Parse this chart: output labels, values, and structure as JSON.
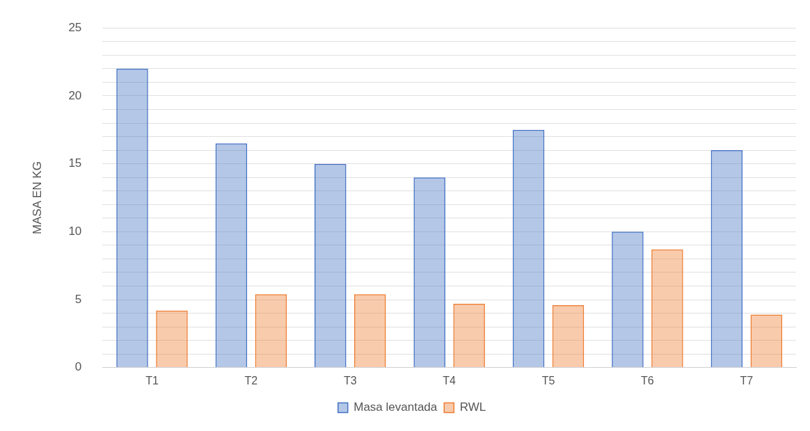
{
  "chart_data": {
    "type": "bar",
    "ylabel": "MASA EN KG",
    "categories": [
      "T1",
      "T2",
      "T3",
      "T4",
      "T5",
      "T6",
      "T7"
    ],
    "series": [
      {
        "name": "Masa levantada",
        "color": "#4472c4",
        "values": [
          22,
          16.5,
          15,
          14,
          17.5,
          10,
          16
        ]
      },
      {
        "name": "RWL",
        "color": "#ed7d31",
        "values": [
          4.2,
          5.4,
          5.4,
          4.7,
          4.6,
          8.7,
          3.9
        ]
      }
    ],
    "ylim": [
      0,
      25
    ],
    "yticks": [
      0,
      {
        "value": 1,
        "label": null
      },
      {
        "value": 2,
        "label": null
      },
      {
        "value": 3,
        "label": null
      },
      {
        "value": 4,
        "label": null
      },
      5,
      {
        "value": 6,
        "label": null
      },
      {
        "value": 7,
        "label": null
      },
      {
        "value": 8,
        "label": null
      },
      {
        "value": 9,
        "label": null
      },
      10,
      {
        "value": 11,
        "label": null
      },
      {
        "value": 12,
        "label": null
      },
      {
        "value": 13,
        "label": null
      },
      {
        "value": 14,
        "label": null
      },
      15,
      {
        "value": 16,
        "label": null
      },
      {
        "value": 17,
        "label": null
      },
      {
        "value": 18,
        "label": null
      },
      {
        "value": 19,
        "label": null
      },
      20,
      {
        "value": 21,
        "label": null
      },
      {
        "value": 22,
        "label": null
      },
      {
        "value": 23,
        "label": null
      },
      {
        "value": 24,
        "label": null
      },
      25
    ],
    "grid": "y",
    "legend": "bottom"
  }
}
